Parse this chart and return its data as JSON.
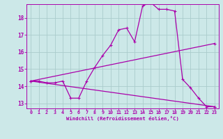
{
  "xlabel": "Windchill (Refroidissement éolien,°C)",
  "ylabel": "",
  "bg_color": "#cce8e8",
  "line_color": "#aa00aa",
  "grid_color": "#aacccc",
  "xlim": [
    -0.5,
    23.5
  ],
  "ylim": [
    12.7,
    18.8
  ],
  "yticks": [
    13,
    14,
    15,
    16,
    17,
    18
  ],
  "xticks": [
    0,
    1,
    2,
    3,
    4,
    5,
    6,
    7,
    8,
    9,
    10,
    11,
    12,
    13,
    14,
    15,
    16,
    17,
    18,
    19,
    20,
    21,
    22,
    23
  ],
  "series1_x": [
    0,
    1,
    2,
    3,
    4,
    5,
    6,
    7,
    8,
    9,
    10,
    11,
    12,
    13,
    14,
    15,
    16,
    17,
    18,
    19,
    20,
    21,
    22,
    23
  ],
  "series1_y": [
    14.3,
    14.3,
    14.2,
    14.2,
    14.3,
    13.3,
    13.3,
    14.3,
    15.1,
    15.8,
    16.4,
    17.3,
    17.4,
    16.6,
    18.7,
    18.9,
    18.5,
    18.5,
    18.4,
    14.4,
    13.9,
    13.3,
    12.8,
    12.8
  ],
  "series2_x": [
    0,
    23
  ],
  "series2_y": [
    14.3,
    16.5
  ],
  "series3_x": [
    0,
    23
  ],
  "series3_y": [
    14.3,
    12.8
  ],
  "marker_size": 3,
  "linewidth": 0.9
}
